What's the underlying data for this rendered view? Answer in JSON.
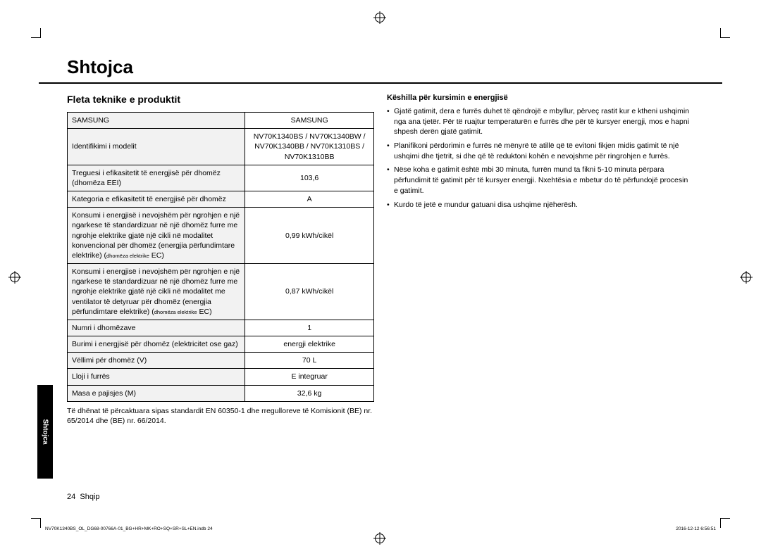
{
  "title": "Shtojca",
  "section_heading": "Fleta teknike e produktit",
  "table": {
    "rows": [
      {
        "label": "SAMSUNG",
        "value": "SAMSUNG"
      },
      {
        "label": "Identifikimi i modelit",
        "value": "NV70K1340BS / NV70K1340BW / NV70K1340BB / NV70K1310BS / NV70K1310BB"
      },
      {
        "label": "Treguesi i efikasitetit të energjisë për dhomëz (dhomëza EEI)",
        "value": "103,6"
      },
      {
        "label": "Kategoria e efikasitetit të energjisë për dhomëz",
        "value": "A"
      },
      {
        "label_main": "Konsumi i energjisë i nevojshëm për ngrohjen e një ngarkese të standardizuar në një dhomëz furre me ngrohje elektrike gjatë një cikli në modalitet konvencional për dhomëz (energjia përfundimtare elektrike) (",
        "label_small": "dhomëza elektrike",
        "label_tail": " EC)",
        "value": "0,99 kWh/cikël"
      },
      {
        "label_main": "Konsumi i energjisë i nevojshëm për ngrohjen e një ngarkese të standardizuar në një dhomëz furre me ngrohje elektrike gjatë një cikli në modalitet me ventilator të detyruar për dhomëz (energjia përfundimtare elektrike) (",
        "label_small": "dhomëza elektrike",
        "label_tail": " EC)",
        "value": "0,87 kWh/cikël"
      },
      {
        "label": "Numri i dhomëzave",
        "value": "1"
      },
      {
        "label": "Burimi i energjisë për dhomëz (elektricitet ose gaz)",
        "value": "energji elektrike"
      },
      {
        "label": "Vëllimi për dhomëz (V)",
        "value": "70 L"
      },
      {
        "label": "Lloji i furrës",
        "value": "E integruar"
      },
      {
        "label": "Masa e pajisjes (M)",
        "value": "32,6 kg"
      }
    ],
    "note": "Të dhënat të përcaktuara sipas standardit EN 60350-1 dhe rregulloreve të Komisionit (BE) nr. 65/2014 dhe (BE) nr. 66/2014."
  },
  "tips": {
    "heading": "Këshilla për kursimin e energjisë",
    "items": [
      "Gjatë gatimit, dera e furrës duhet të qëndrojë e mbyllur, përveç rastit kur e ktheni ushqimin nga ana tjetër. Për të ruajtur temperaturën e furrës dhe për të kursyer energji, mos e hapni shpesh derën gjatë gatimit.",
      "Planifikoni përdorimin e furrës në mënyrë të atillë që të evitoni fikjen midis gatimit të një ushqimi dhe tjetrit, si dhe që të reduktoni kohën e nevojshme për ringrohjen e furrës.",
      "Nëse koha e gatimit është mbi 30 minuta, furrën mund ta fikni 5-10 minuta përpara përfundimit të gatimit për të kursyer energji. Nxehtësia e mbetur do të përfundojë procesin e gatimit.",
      "Kurdo të jetë e mundur gatuani disa ushqime njëherësh."
    ]
  },
  "side_tab": "Shtojca",
  "footer": {
    "page": "24",
    "lang": "Shqip"
  },
  "print": {
    "left": "NV70K1340BS_OL_DG68-00766A-01_BG+HR+MK+RO+SQ+SR+SL+EN.indb   24",
    "right": "2016-12-12   6:56:51"
  }
}
